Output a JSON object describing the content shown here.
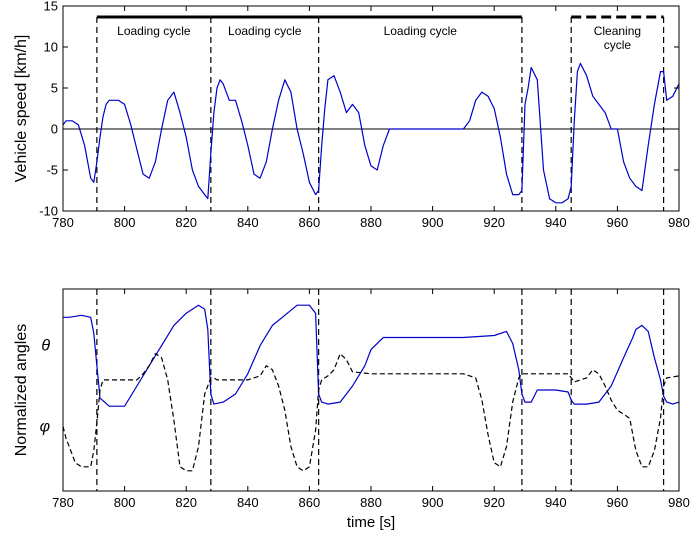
{
  "figure": {
    "xlabel": "time [s]",
    "colors": {
      "speed": "#0000cc",
      "theta": "#0000cc",
      "phi": "#000000",
      "axis": "#000000"
    }
  },
  "chart_data": [
    {
      "type": "line",
      "ylabel": "Vehicle speed   [km/h]",
      "xlabel": "",
      "xlim": [
        780,
        980
      ],
      "ylim": [
        -10,
        15
      ],
      "xticks": [
        780,
        800,
        820,
        840,
        860,
        880,
        900,
        920,
        940,
        960,
        980
      ],
      "yticks": [
        -10,
        -5,
        0,
        5,
        10,
        15
      ],
      "zero_line": true,
      "cycle_markers": [
        791,
        828,
        863,
        929,
        945,
        975
      ],
      "cycle_labels": [
        {
          "text": "Loading cycle",
          "start": 791,
          "end": 828,
          "style": "solid"
        },
        {
          "text": "Loading cycle",
          "start": 828,
          "end": 863,
          "style": "solid"
        },
        {
          "text": "Loading cycle",
          "start": 863,
          "end": 929,
          "style": "solid"
        },
        {
          "text": "Cleaning cycle",
          "start": 945,
          "end": 975,
          "style": "dashed"
        }
      ],
      "series": [
        {
          "x": [
            780,
            781,
            783,
            785,
            787,
            789,
            790,
            791,
            792,
            793,
            794,
            795,
            796,
            798,
            800,
            802,
            804,
            806,
            808,
            810,
            812,
            814,
            816,
            818,
            819,
            820,
            822,
            824,
            826,
            827,
            828,
            829,
            830,
            831,
            832,
            834,
            836,
            838,
            840,
            842,
            844,
            846,
            848,
            850,
            852,
            854,
            856,
            858,
            860,
            862,
            863,
            864,
            865,
            866,
            868,
            870,
            872,
            874,
            876,
            878,
            880,
            882,
            884,
            886,
            888,
            890,
            900,
            910,
            912,
            914,
            916,
            918,
            920,
            922,
            924,
            926,
            928,
            929,
            930,
            931,
            932,
            934,
            936,
            938,
            940,
            942,
            944,
            945,
            946,
            947,
            948,
            950,
            952,
            954,
            956,
            958,
            960,
            962,
            964,
            966,
            968,
            970,
            972,
            974,
            975,
            976,
            978,
            980
          ],
          "values": [
            0.5,
            1,
            1,
            0.5,
            -2,
            -6,
            -6.5,
            -4,
            -1,
            1.5,
            3,
            3.5,
            3.5,
            3.5,
            3,
            0.5,
            -2.5,
            -5.5,
            -6,
            -4,
            0,
            3.5,
            4.5,
            2,
            0.5,
            -1,
            -5,
            -7,
            -8,
            -8.5,
            -3,
            2,
            5,
            6,
            5.5,
            3.5,
            3.5,
            1,
            -2,
            -5.5,
            -6,
            -4,
            0,
            3.5,
            6,
            4.5,
            0,
            -3,
            -6.5,
            -8,
            -7.5,
            -2,
            2.5,
            6,
            6.5,
            4.5,
            2,
            3,
            2,
            -2,
            -4.5,
            -5,
            -2,
            0,
            0,
            0,
            0,
            0,
            1,
            3.5,
            4.5,
            4,
            2.5,
            -1,
            -5.5,
            -8,
            -8,
            -7.5,
            3,
            5,
            7.5,
            6,
            -5,
            -8.5,
            -9,
            -9,
            -8.5,
            -7,
            1,
            7,
            8,
            6.5,
            4,
            3,
            2,
            0,
            0,
            -4,
            -6,
            -7,
            -7.5,
            -2,
            3,
            7,
            7,
            3.5,
            4,
            5.5
          ]
        }
      ]
    },
    {
      "type": "line",
      "ylabel": "Normalized angles",
      "xlabel": "time [s]",
      "xlim": [
        780,
        980
      ],
      "ylim": [
        0,
        1
      ],
      "xticks": [
        780,
        800,
        820,
        840,
        860,
        880,
        900,
        920,
        940,
        960,
        980
      ],
      "ytick_labels": [
        {
          "text": "θ",
          "y": 0.72
        },
        {
          "text": "φ",
          "y": 0.32
        }
      ],
      "cycle_markers": [
        791,
        828,
        863,
        929,
        945,
        975
      ],
      "series": [
        {
          "name": "θ",
          "style": "solid",
          "x": [
            780,
            782,
            786,
            789,
            790,
            791,
            792,
            795,
            797,
            800,
            804,
            808,
            812,
            816,
            820,
            824,
            826,
            827,
            828,
            829,
            832,
            836,
            840,
            844,
            848,
            852,
            856,
            860,
            862,
            863,
            864,
            866,
            870,
            874,
            878,
            880,
            884,
            890,
            900,
            910,
            920,
            924,
            926,
            928,
            929,
            930,
            932,
            934,
            936,
            940,
            944,
            945,
            946,
            950,
            954,
            958,
            962,
            965,
            966,
            968,
            970,
            972,
            974,
            975,
            976,
            978,
            980
          ],
          "values": [
            0.86,
            0.86,
            0.87,
            0.86,
            0.78,
            0.62,
            0.46,
            0.42,
            0.42,
            0.42,
            0.52,
            0.62,
            0.72,
            0.82,
            0.88,
            0.92,
            0.9,
            0.8,
            0.48,
            0.43,
            0.44,
            0.48,
            0.58,
            0.72,
            0.82,
            0.87,
            0.92,
            0.92,
            0.88,
            0.48,
            0.44,
            0.43,
            0.44,
            0.52,
            0.62,
            0.7,
            0.76,
            0.76,
            0.76,
            0.76,
            0.77,
            0.79,
            0.73,
            0.6,
            0.48,
            0.44,
            0.44,
            0.5,
            0.5,
            0.5,
            0.49,
            0.45,
            0.43,
            0.43,
            0.44,
            0.52,
            0.66,
            0.76,
            0.8,
            0.82,
            0.79,
            0.66,
            0.55,
            0.47,
            0.44,
            0.43,
            0.44
          ]
        },
        {
          "name": "φ",
          "style": "dashed",
          "x": [
            780,
            781,
            782,
            784,
            786,
            788,
            789,
            790,
            791,
            792,
            793,
            800,
            804,
            806,
            808,
            810,
            812,
            814,
            816,
            818,
            820,
            822,
            824,
            826,
            828,
            829,
            830,
            840,
            844,
            846,
            848,
            850,
            852,
            854,
            856,
            858,
            860,
            862,
            863,
            864,
            866,
            868,
            870,
            872,
            874,
            880,
            900,
            910,
            914,
            916,
            918,
            920,
            922,
            924,
            926,
            928,
            929,
            930,
            944,
            945,
            946,
            950,
            952,
            954,
            956,
            958,
            960,
            962,
            964,
            966,
            968,
            970,
            972,
            974,
            975,
            976,
            980
          ],
          "values": [
            0.32,
            0.26,
            0.22,
            0.14,
            0.12,
            0.12,
            0.12,
            0.2,
            0.34,
            0.5,
            0.55,
            0.55,
            0.55,
            0.58,
            0.62,
            0.68,
            0.66,
            0.55,
            0.35,
            0.12,
            0.1,
            0.1,
            0.22,
            0.48,
            0.56,
            0.56,
            0.55,
            0.55,
            0.57,
            0.62,
            0.6,
            0.52,
            0.4,
            0.22,
            0.12,
            0.1,
            0.12,
            0.3,
            0.5,
            0.55,
            0.57,
            0.6,
            0.68,
            0.65,
            0.59,
            0.58,
            0.58,
            0.58,
            0.56,
            0.45,
            0.28,
            0.14,
            0.12,
            0.22,
            0.44,
            0.56,
            0.58,
            0.58,
            0.58,
            0.56,
            0.54,
            0.56,
            0.6,
            0.58,
            0.52,
            0.45,
            0.4,
            0.38,
            0.36,
            0.2,
            0.12,
            0.12,
            0.2,
            0.36,
            0.52,
            0.56,
            0.57
          ]
        }
      ]
    }
  ]
}
